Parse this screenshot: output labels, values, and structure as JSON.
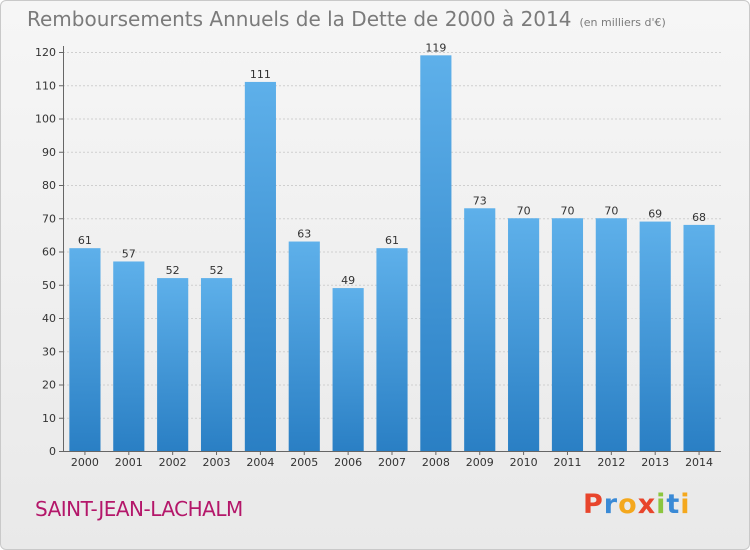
{
  "header": {
    "title": "Remboursements Annuels de la Dette de 2000 à 2014",
    "unit": "(en milliers d'€)"
  },
  "footer": {
    "commune": "SAINT-JEAN-LACHALM",
    "logo_letters": [
      "P",
      "r",
      "o",
      "x",
      "i",
      "t",
      "i"
    ],
    "logo_colors": [
      "#e8452c",
      "#3a8ad6",
      "#f4a81d",
      "#e8452c",
      "#8cc63f",
      "#3a8ad6",
      "#f4a81d"
    ]
  },
  "chart_data": {
    "type": "bar",
    "categories": [
      "2000",
      "2001",
      "2002",
      "2003",
      "2004",
      "2005",
      "2006",
      "2007",
      "2008",
      "2009",
      "2010",
      "2011",
      "2012",
      "2013",
      "2014"
    ],
    "values": [
      61,
      57,
      52,
      52,
      111,
      63,
      49,
      61,
      119,
      73,
      70,
      70,
      70,
      69,
      68
    ],
    "title": "Remboursements Annuels de la Dette de 2000 à 2014",
    "ylim": [
      0,
      120
    ],
    "yticks": [
      0,
      10,
      20,
      30,
      40,
      50,
      60,
      70,
      80,
      90,
      100,
      110,
      120
    ],
    "grid": true,
    "bar_color_top": "#5eb0ea",
    "bar_color_bottom": "#2a7fc4"
  }
}
